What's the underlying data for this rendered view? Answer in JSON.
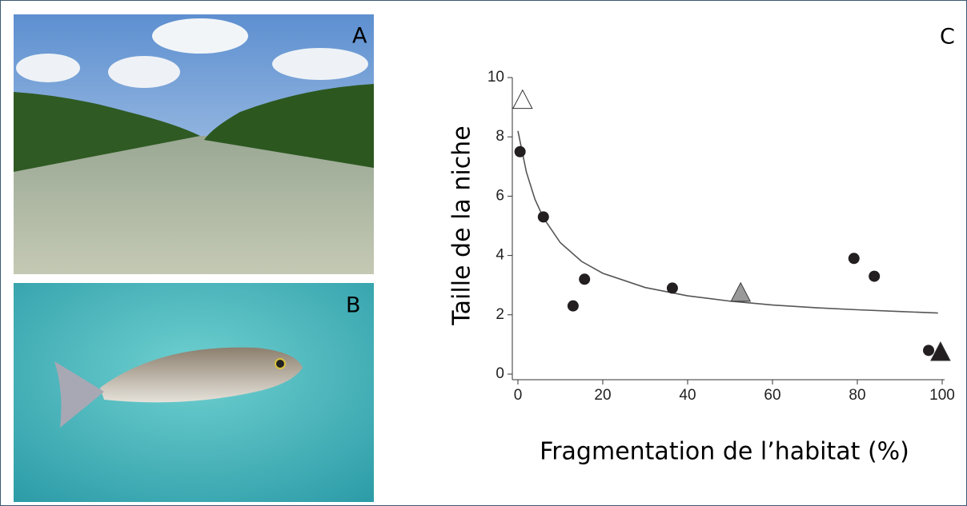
{
  "panel_labels": [
    "A",
    "B",
    "C"
  ],
  "chart_data": {
    "type": "scatter",
    "x_label": "Fragmentation de l’habitat (%)",
    "y_label": "Taille de la niche",
    "xlim": [
      0,
      100
    ],
    "xticks": [
      0,
      20,
      40,
      60,
      80,
      100
    ],
    "ylim": [
      0,
      10
    ],
    "yticks": [
      0,
      2,
      4,
      6,
      8,
      10
    ],
    "series": [
      {
        "marker": "circle",
        "color": "#231f20",
        "x": [
          0.5,
          6.0,
          13.0,
          15.7,
          36.4,
          79.2,
          84.0,
          96.8
        ],
        "values": [
          7.5,
          5.3,
          2.3,
          3.2,
          2.9,
          3.9,
          3.3,
          0.8
        ]
      },
      {
        "marker": "triangle",
        "color": "#ffffff",
        "x": [
          1.1
        ],
        "values": [
          9.2
        ]
      },
      {
        "marker": "triangle",
        "color": "#999999",
        "x": [
          52.5
        ],
        "values": [
          2.7
        ]
      },
      {
        "marker": "triangle",
        "color": "#231f20",
        "x": [
          99.6
        ],
        "values": [
          0.7
        ]
      },
      {
        "marker": "line",
        "color": "#555555",
        "x": [
          0,
          2,
          4,
          6,
          10,
          15,
          20,
          30,
          40,
          50,
          60,
          70,
          80,
          90,
          99
        ],
        "values": [
          8.2,
          6.81,
          5.9,
          5.27,
          4.43,
          3.8,
          3.4,
          2.92,
          2.64,
          2.46,
          2.33,
          2.24,
          2.17,
          2.11,
          2.06
        ]
      }
    ]
  }
}
